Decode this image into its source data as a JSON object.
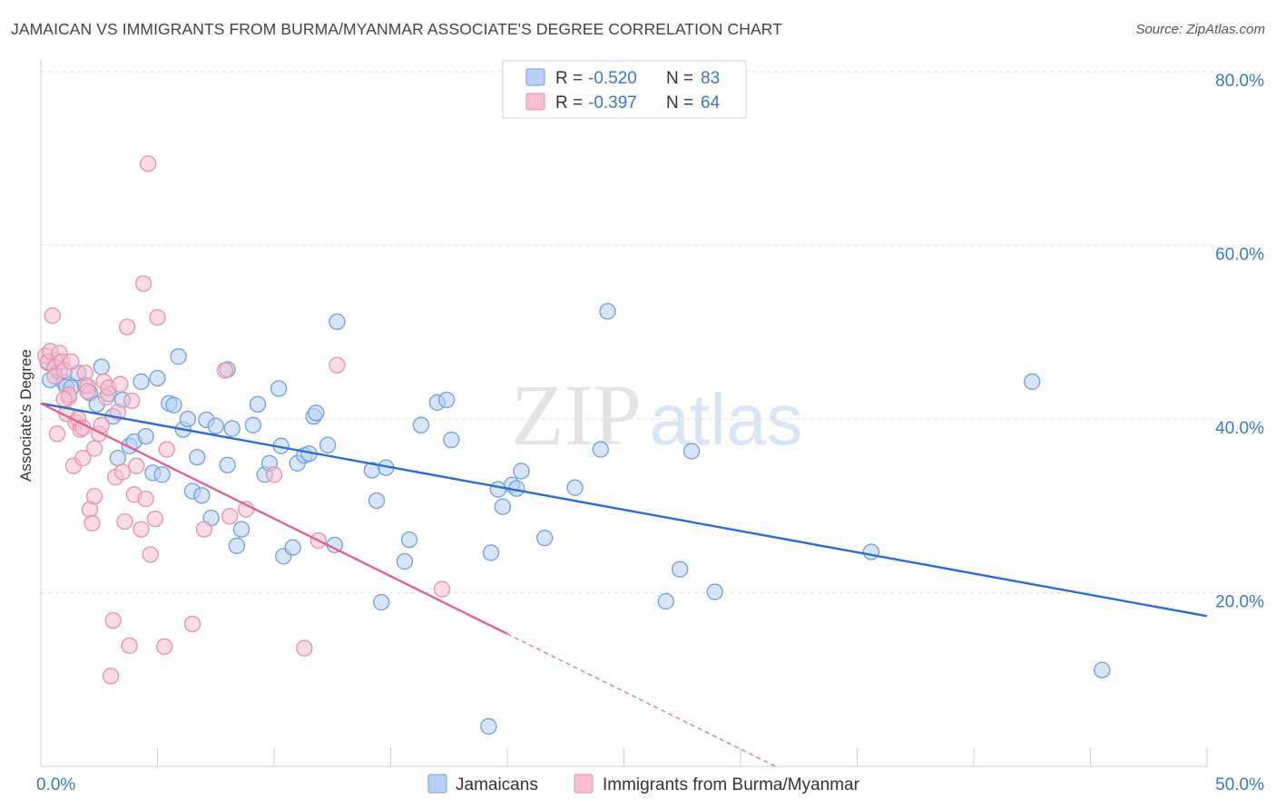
{
  "header": {
    "title": "JAMAICAN VS IMMIGRANTS FROM BURMA/MYANMAR ASSOCIATE'S DEGREE CORRELATION CHART",
    "source": "Source: ZipAtlas.com"
  },
  "watermark": {
    "part1": "ZIP",
    "part2": "atlas"
  },
  "colors": {
    "blue_fill": "#b8d0f3",
    "blue_stroke": "#6f9fdc",
    "blue_line": "#2a6fd0",
    "pink_fill": "#f6c0d2",
    "pink_stroke": "#e890ac",
    "pink_line": "#e0648e",
    "axis_text": "#3a77c9"
  },
  "legend": {
    "rows": [
      {
        "r_label": "R =",
        "r_value": "-0.520",
        "n_label": "N =",
        "n_value": "83"
      },
      {
        "r_label": "R =",
        "r_value": "-0.397",
        "n_label": "N =",
        "n_value": "64"
      }
    ]
  },
  "chart_data": {
    "type": "scatter",
    "title": "JAMAICAN VS IMMIGRANTS FROM BURMA/MYANMAR ASSOCIATE'S DEGREE CORRELATION CHART",
    "xlabel": "",
    "ylabel": "Associate's Degree",
    "xlim": [
      0,
      50
    ],
    "ylim": [
      0,
      80
    ],
    "x_tick_labels": [
      {
        "value": 0,
        "label": "0.0%"
      },
      {
        "value": 50,
        "label": "50.0%"
      }
    ],
    "y_tick_labels": [
      {
        "value": 80,
        "label": "80.0%"
      },
      {
        "value": 60,
        "label": "60.0%"
      },
      {
        "value": 40,
        "label": "40.0%"
      },
      {
        "value": 20,
        "label": "20.0%"
      }
    ],
    "grid": true,
    "series": [
      {
        "name": "Jamaicans",
        "color": "blue",
        "r": -0.52,
        "n": 83,
        "trend": {
          "x0": 0,
          "y0": 41.8,
          "x1": 50,
          "y1": 17.3,
          "solid_until": 50
        },
        "points": [
          [
            0.3,
            46.5
          ],
          [
            0.4,
            44.5
          ],
          [
            0.6,
            46.8
          ],
          [
            0.8,
            45.4
          ],
          [
            1.0,
            44.2
          ],
          [
            1.1,
            43.7
          ],
          [
            1.3,
            43.6
          ],
          [
            1.6,
            45.3
          ],
          [
            1.9,
            43.9
          ],
          [
            2.1,
            43.0
          ],
          [
            2.4,
            41.7
          ],
          [
            2.6,
            46.0
          ],
          [
            2.9,
            42.9
          ],
          [
            3.1,
            40.3
          ],
          [
            3.3,
            35.5
          ],
          [
            3.5,
            42.2
          ],
          [
            3.8,
            36.9
          ],
          [
            4.0,
            37.4
          ],
          [
            4.3,
            44.3
          ],
          [
            4.5,
            38.0
          ],
          [
            4.8,
            33.8
          ],
          [
            5.0,
            44.7
          ],
          [
            5.2,
            33.6
          ],
          [
            5.5,
            41.8
          ],
          [
            5.7,
            41.6
          ],
          [
            5.9,
            47.2
          ],
          [
            6.1,
            38.8
          ],
          [
            6.3,
            40.0
          ],
          [
            6.5,
            31.7
          ],
          [
            6.7,
            35.6
          ],
          [
            6.9,
            31.2
          ],
          [
            7.1,
            39.9
          ],
          [
            7.3,
            28.6
          ],
          [
            7.5,
            39.2
          ],
          [
            8.0,
            34.7
          ],
          [
            8.2,
            38.9
          ],
          [
            8.4,
            25.4
          ],
          [
            8.6,
            27.3
          ],
          [
            9.1,
            39.3
          ],
          [
            9.3,
            41.7
          ],
          [
            9.6,
            33.6
          ],
          [
            9.8,
            34.9
          ],
          [
            10.2,
            43.5
          ],
          [
            10.3,
            36.9
          ],
          [
            10.4,
            24.2
          ],
          [
            10.8,
            25.2
          ],
          [
            11.0,
            34.9
          ],
          [
            11.3,
            35.8
          ],
          [
            11.5,
            36.0
          ],
          [
            11.7,
            40.3
          ],
          [
            11.8,
            40.7
          ],
          [
            12.3,
            37.0
          ],
          [
            12.6,
            25.5
          ],
          [
            12.7,
            51.2
          ],
          [
            14.2,
            34.1
          ],
          [
            14.4,
            30.6
          ],
          [
            14.6,
            18.9
          ],
          [
            14.8,
            34.4
          ],
          [
            15.6,
            23.6
          ],
          [
            15.8,
            26.1
          ],
          [
            16.3,
            39.3
          ],
          [
            17.0,
            41.9
          ],
          [
            17.4,
            42.2
          ],
          [
            17.6,
            37.6
          ],
          [
            19.2,
            4.6
          ],
          [
            19.3,
            24.6
          ],
          [
            19.6,
            31.9
          ],
          [
            19.8,
            29.9
          ],
          [
            20.2,
            32.4
          ],
          [
            20.4,
            32.0
          ],
          [
            20.6,
            34.0
          ],
          [
            21.6,
            26.3
          ],
          [
            22.9,
            32.1
          ],
          [
            24.0,
            36.5
          ],
          [
            24.3,
            52.4
          ],
          [
            26.8,
            19.0
          ],
          [
            27.4,
            22.7
          ],
          [
            27.9,
            36.3
          ],
          [
            28.9,
            20.1
          ],
          [
            35.6,
            24.7
          ],
          [
            42.5,
            44.3
          ],
          [
            45.5,
            11.1
          ],
          [
            8.0,
            45.7
          ]
        ]
      },
      {
        "name": "Immigrants from Burma/Myanmar",
        "color": "pink",
        "r": -0.397,
        "n": 64,
        "trend": {
          "x0": 0,
          "y0": 41.8,
          "x1": 31.5,
          "y1": 0,
          "solid_until": 20
        },
        "points": [
          [
            0.2,
            47.3
          ],
          [
            0.3,
            46.6
          ],
          [
            0.4,
            47.8
          ],
          [
            0.5,
            51.9
          ],
          [
            0.6,
            45.9
          ],
          [
            0.6,
            44.9
          ],
          [
            0.7,
            38.3
          ],
          [
            0.8,
            47.6
          ],
          [
            0.9,
            46.6
          ],
          [
            1.0,
            45.6
          ],
          [
            1.1,
            40.6
          ],
          [
            1.2,
            42.5
          ],
          [
            1.2,
            42.8
          ],
          [
            1.3,
            46.6
          ],
          [
            1.4,
            34.6
          ],
          [
            1.5,
            39.6
          ],
          [
            1.6,
            40.0
          ],
          [
            1.7,
            38.8
          ],
          [
            1.8,
            39.0
          ],
          [
            1.8,
            35.5
          ],
          [
            1.9,
            45.3
          ],
          [
            2.0,
            43.8
          ],
          [
            2.1,
            29.6
          ],
          [
            2.2,
            28.0
          ],
          [
            2.3,
            36.6
          ],
          [
            2.3,
            31.1
          ],
          [
            2.5,
            38.3
          ],
          [
            2.6,
            39.3
          ],
          [
            2.7,
            44.3
          ],
          [
            2.8,
            42.5
          ],
          [
            2.9,
            43.6
          ],
          [
            3.0,
            10.4
          ],
          [
            3.1,
            16.8
          ],
          [
            3.2,
            33.3
          ],
          [
            3.3,
            40.8
          ],
          [
            3.4,
            44.0
          ],
          [
            3.5,
            33.9
          ],
          [
            3.6,
            28.2
          ],
          [
            3.7,
            50.6
          ],
          [
            3.8,
            13.9
          ],
          [
            3.9,
            42.1
          ],
          [
            4.0,
            31.3
          ],
          [
            4.1,
            34.6
          ],
          [
            4.3,
            27.3
          ],
          [
            4.4,
            55.6
          ],
          [
            4.5,
            30.8
          ],
          [
            4.6,
            69.4
          ],
          [
            4.7,
            24.4
          ],
          [
            4.9,
            28.5
          ],
          [
            5.0,
            51.7
          ],
          [
            5.3,
            13.8
          ],
          [
            5.4,
            36.5
          ],
          [
            6.5,
            16.4
          ],
          [
            7.0,
            27.3
          ],
          [
            7.9,
            45.6
          ],
          [
            8.1,
            28.8
          ],
          [
            8.8,
            29.6
          ],
          [
            10.0,
            33.6
          ],
          [
            11.3,
            13.6
          ],
          [
            11.9,
            26.0
          ],
          [
            12.7,
            46.2
          ],
          [
            17.2,
            20.4
          ],
          [
            2.0,
            43.2
          ],
          [
            1.0,
            42.3
          ]
        ]
      }
    ]
  }
}
